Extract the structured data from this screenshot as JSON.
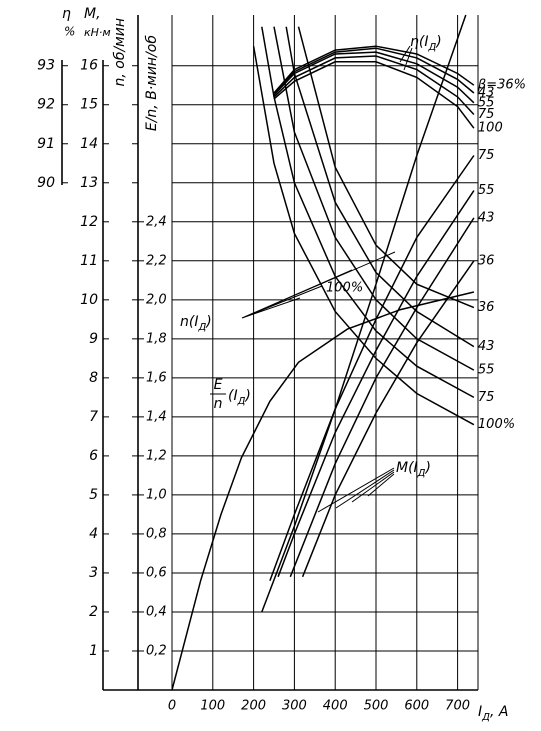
{
  "chart_data": {
    "type": "line",
    "x_label": {
      "main": "I",
      "sub": "Д",
      "end": ", A"
    },
    "xlim": [
      0,
      750
    ],
    "xticks": [
      0,
      100,
      200,
      300,
      400,
      500,
      600,
      700
    ],
    "grid": true,
    "color": "#000000",
    "axes": {
      "m": {
        "title": "M,",
        "unit": "кН·м",
        "ylim": [
          0,
          17.3
        ],
        "yticks": [
          1,
          2,
          3,
          4,
          5,
          6,
          7,
          8,
          9,
          10,
          11,
          12,
          13,
          14,
          15,
          16
        ]
      },
      "n": {
        "title": "n, об/мин"
      },
      "eta": {
        "title": "η",
        "unit": "%",
        "ylim": [
          77,
          94.3
        ],
        "yticks": [
          90,
          91,
          92,
          93
        ]
      },
      "en": {
        "title": "E/n, В·мин/об",
        "ylim": [
          0,
          3.46
        ],
        "yticks": [
          {
            "value": 0.2,
            "label": "0,2"
          },
          {
            "value": 0.4,
            "label": "0,4"
          },
          {
            "value": 0.6,
            "label": "0,6"
          },
          {
            "value": 0.8,
            "label": "0,8"
          },
          {
            "value": 1.0,
            "label": "1,0"
          },
          {
            "value": 1.2,
            "label": "1,2"
          },
          {
            "value": 1.4,
            "label": "1,4"
          },
          {
            "value": 1.6,
            "label": "1,6"
          },
          {
            "value": 1.8,
            "label": "1,8"
          },
          {
            "value": 2.0,
            "label": "2,0"
          },
          {
            "value": 2.2,
            "label": "2,2"
          },
          {
            "value": 2.4,
            "label": "2,4"
          }
        ]
      }
    },
    "series": [
      {
        "label": "β=36%",
        "axis": "eta",
        "x": [
          250,
          300,
          400,
          500,
          600,
          700,
          740
        ],
        "values": [
          92.3,
          92.9,
          93.4,
          93.5,
          93.3,
          92.8,
          92.5
        ]
      },
      {
        "label": "43",
        "axis": "eta",
        "x": [
          250,
          300,
          400,
          500,
          600,
          700,
          740
        ],
        "values": [
          92.3,
          92.85,
          93.35,
          93.45,
          93.2,
          92.65,
          92.3
        ]
      },
      {
        "label": "55",
        "axis": "eta",
        "x": [
          250,
          300,
          400,
          500,
          600,
          700,
          740
        ],
        "values": [
          92.25,
          92.8,
          93.3,
          93.35,
          93.05,
          92.45,
          92.05
        ]
      },
      {
        "label": "75",
        "axis": "eta",
        "x": [
          250,
          300,
          400,
          500,
          600,
          700,
          740
        ],
        "values": [
          92.2,
          92.7,
          93.2,
          93.25,
          92.9,
          92.2,
          91.75
        ]
      },
      {
        "label": "100",
        "axis": "eta",
        "x": [
          250,
          300,
          400,
          500,
          600,
          700,
          740
        ],
        "values": [
          92.15,
          92.6,
          93.1,
          93.1,
          92.7,
          91.95,
          91.4
        ]
      },
      {
        "label": "36",
        "axis": "m",
        "x": [
          310,
          400,
          500,
          600,
          740
        ],
        "values": [
          17,
          13.4,
          11.4,
          10.4,
          9.8
        ]
      },
      {
        "label": "43",
        "axis": "m",
        "x": [
          280,
          300,
          400,
          500,
          600,
          740
        ],
        "values": [
          17,
          15.8,
          12.5,
          10.7,
          9.7,
          8.8
        ]
      },
      {
        "label": "55",
        "axis": "m",
        "x": [
          250,
          300,
          400,
          500,
          600,
          740
        ],
        "values": [
          17,
          14.3,
          11.6,
          10,
          9,
          8.2
        ]
      },
      {
        "label": "75",
        "axis": "m",
        "x": [
          220,
          250,
          300,
          400,
          500,
          600,
          740
        ],
        "values": [
          17,
          15.2,
          13,
          10.6,
          9.2,
          8.3,
          7.5
        ]
      },
      {
        "label": "100%",
        "axis": "m",
        "x": [
          200,
          250,
          300,
          400,
          500,
          600,
          740
        ],
        "values": [
          16.5,
          13.5,
          11.7,
          9.7,
          8.5,
          7.6,
          6.8
        ]
      },
      {
        "label": "75",
        "axis": "m",
        "x": [
          240,
          300,
          400,
          500,
          600,
          740
        ],
        "values": [
          2.8,
          4.5,
          7.2,
          9.5,
          11.6,
          13.7
        ]
      },
      {
        "label": "55",
        "axis": "m",
        "x": [
          260,
          300,
          400,
          500,
          600,
          740
        ],
        "values": [
          2.9,
          4.0,
          6.6,
          8.7,
          10.6,
          12.8
        ]
      },
      {
        "label": "43",
        "axis": "m",
        "x": [
          290,
          400,
          500,
          600,
          740
        ],
        "values": [
          2.9,
          5.8,
          8.0,
          9.8,
          12.1
        ]
      },
      {
        "label": "36",
        "axis": "m",
        "x": [
          320,
          400,
          500,
          600,
          740
        ],
        "values": [
          2.9,
          5.0,
          7.1,
          8.9,
          11.0
        ]
      },
      {
        "label": "100%",
        "axis": "m",
        "x": [
          220,
          300,
          400,
          500,
          600,
          720
        ],
        "values": [
          2.0,
          4.2,
          7.2,
          10.4,
          13.7,
          17.3
        ]
      },
      {
        "axis": "en",
        "x": [
          0,
          70,
          120,
          170,
          240,
          310,
          430,
          560,
          740
        ],
        "values": [
          0,
          0.56,
          0.9,
          1.19,
          1.48,
          1.68,
          1.85,
          1.95,
          2.04
        ]
      }
    ],
    "annotations": [
      {
        "main": "η(I",
        "sub": "Д",
        "end": ")"
      },
      {
        "main": "n(I",
        "sub": "Д",
        "end": ")"
      },
      {
        "num": "E",
        "den": "n",
        "main": "(I",
        "sub": "Д",
        "end": ")"
      },
      {
        "main": "M(I",
        "sub": "Д",
        "end": ")"
      }
    ]
  }
}
